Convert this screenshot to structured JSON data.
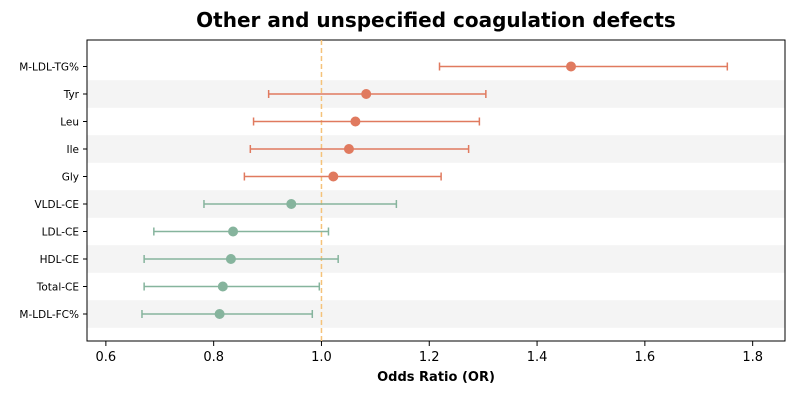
{
  "chart_data": {
    "type": "forest",
    "title": "Other and unspecified coagulation defects",
    "xlabel": "Odds Ratio (OR)",
    "xlim": [
      0.565,
      1.86
    ],
    "xticks": [
      0.6,
      0.8,
      1.0,
      1.2,
      1.4,
      1.6,
      1.8
    ],
    "xtick_labels": [
      "0.6",
      "0.8",
      "1.0",
      "1.2",
      "1.4",
      "1.6",
      "1.8"
    ],
    "reference_line": 1.0,
    "reference_color": "#f5c27a",
    "positive_color": "#e07a5f",
    "negative_color": "#86b49d",
    "stripe_color": "#f4f4f4",
    "rows": [
      {
        "label": "M-LDL-TG%",
        "or": 1.463,
        "lower": 1.219,
        "upper": 1.753
      },
      {
        "label": "Tyr",
        "or": 1.083,
        "lower": 0.902,
        "upper": 1.305
      },
      {
        "label": "Leu",
        "or": 1.063,
        "lower": 0.874,
        "upper": 1.293
      },
      {
        "label": "Ile",
        "or": 1.051,
        "lower": 0.868,
        "upper": 1.273
      },
      {
        "label": "Gly",
        "or": 1.022,
        "lower": 0.857,
        "upper": 1.222
      },
      {
        "label": "VLDL-CE",
        "or": 0.944,
        "lower": 0.782,
        "upper": 1.139
      },
      {
        "label": "LDL-CE",
        "or": 0.836,
        "lower": 0.689,
        "upper": 1.013
      },
      {
        "label": "HDL-CE",
        "or": 0.832,
        "lower": 0.671,
        "upper": 1.031
      },
      {
        "label": "Total-CE",
        "or": 0.817,
        "lower": 0.671,
        "upper": 0.996
      },
      {
        "label": "M-LDL-FC%",
        "or": 0.811,
        "lower": 0.667,
        "upper": 0.983
      }
    ]
  }
}
